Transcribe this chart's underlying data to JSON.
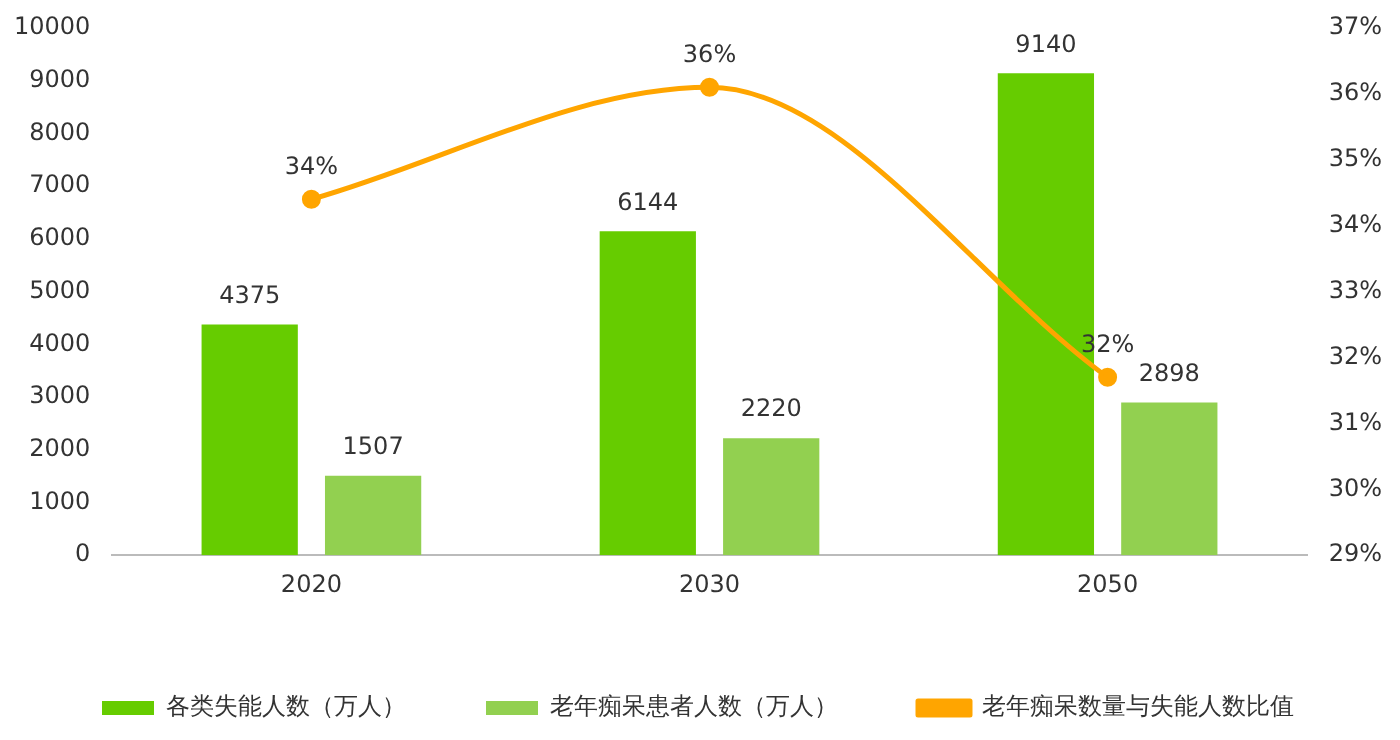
{
  "chart_data": {
    "type": "bar",
    "categories": [
      "2020",
      "2030",
      "2050"
    ],
    "series": [
      {
        "name": "各类失能人数（万人）",
        "color": "#66cc00",
        "values": [
          4375,
          6144,
          9140
        ],
        "value_labels": [
          "4375",
          "6144",
          "9140"
        ]
      },
      {
        "name": "老年痴呆患者人数（万人）",
        "color": "#92d050",
        "values": [
          1507,
          2220,
          2898
        ],
        "value_labels": [
          "1507",
          "2220",
          "2898"
        ]
      },
      {
        "name": "老年痴呆数量与失能人数比值",
        "type": "line",
        "axis": "y2",
        "color": "#ffa500",
        "values": [
          34.4,
          36.1,
          31.7
        ],
        "value_labels": [
          "34%",
          "36%",
          "32%"
        ]
      }
    ],
    "ylim": [
      0,
      10000
    ],
    "yticks": [
      0,
      1000,
      2000,
      3000,
      4000,
      5000,
      6000,
      7000,
      8000,
      9000,
      10000
    ],
    "y2lim": [
      29,
      37
    ],
    "y2ticks": [
      {
        "value": 29,
        "label": "29%"
      },
      {
        "value": 30,
        "label": "30%"
      },
      {
        "value": 31,
        "label": "31%"
      },
      {
        "value": 32,
        "label": "32%"
      },
      {
        "value": 33,
        "label": "33%"
      },
      {
        "value": 34,
        "label": "34%"
      },
      {
        "value": 35,
        "label": "35%"
      },
      {
        "value": 36,
        "label": "36%"
      },
      {
        "value": 37,
        "label": "37%"
      }
    ],
    "grid": false,
    "legend": "bottom",
    "marker": "circle",
    "line_style": "solid"
  }
}
